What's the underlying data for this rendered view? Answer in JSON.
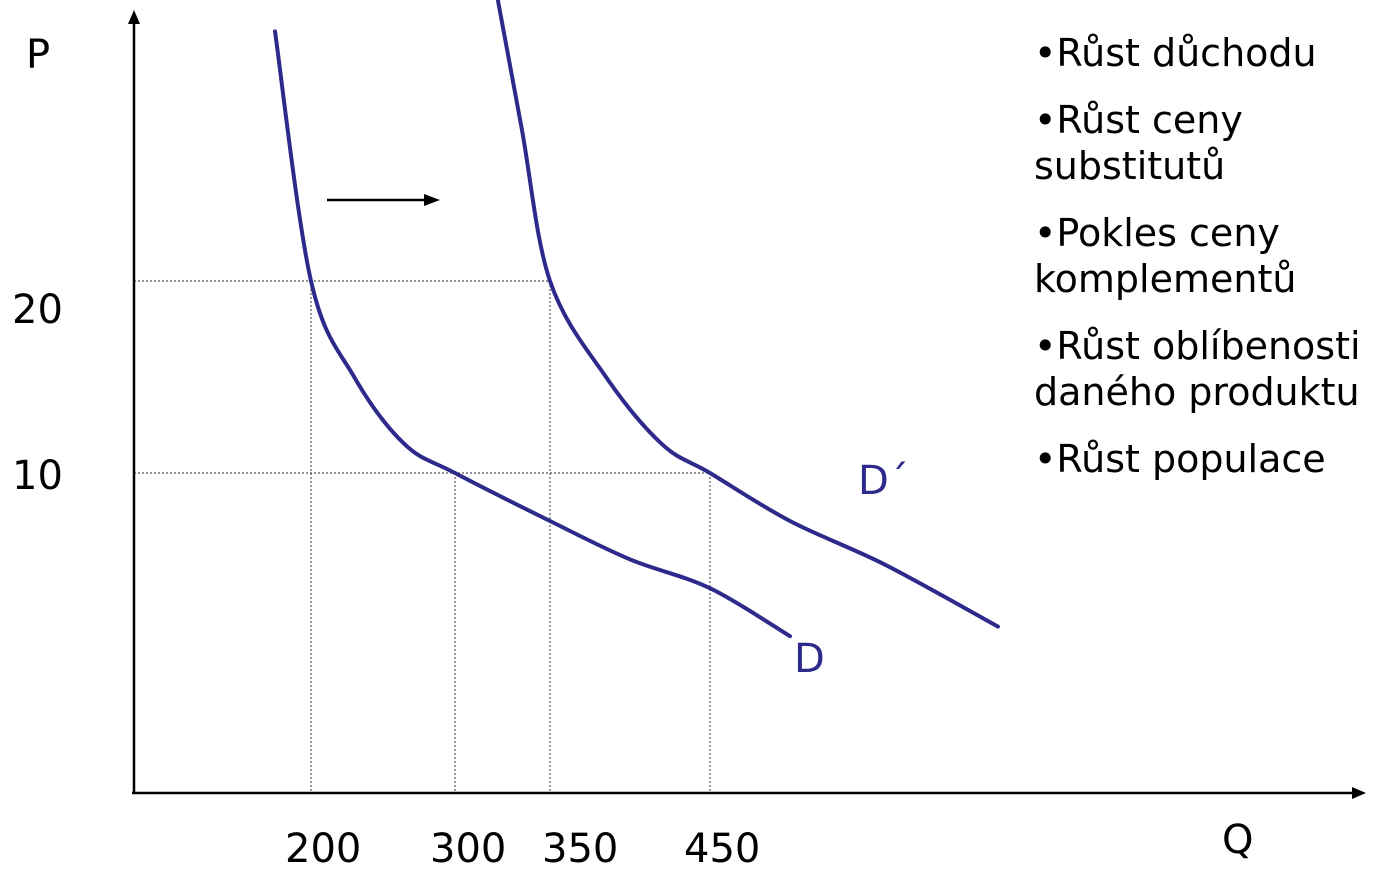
{
  "chart_data": {
    "type": "line",
    "xlabel": "Q",
    "ylabel": "P",
    "yticks": [
      "20",
      "10"
    ],
    "xticks": [
      "200",
      "300",
      "350",
      "450"
    ],
    "series": [
      {
        "name": "D",
        "points": [
          [
            175,
            33
          ],
          [
            200,
            20
          ],
          [
            230,
            15
          ],
          [
            265,
            11.5
          ],
          [
            300,
            10
          ],
          [
            350,
            7.5
          ],
          [
            400,
            5.5
          ],
          [
            450,
            4
          ],
          [
            500,
            1.5
          ]
        ]
      },
      {
        "name": "D´",
        "points": [
          [
            320,
            36
          ],
          [
            335,
            28
          ],
          [
            350,
            20
          ],
          [
            385,
            15
          ],
          [
            420,
            11.5
          ],
          [
            450,
            10
          ],
          [
            500,
            7.5
          ],
          [
            560,
            5.2
          ],
          [
            630,
            2
          ]
        ]
      }
    ],
    "guides": [
      {
        "y": 20,
        "x_start": 200,
        "x_end": 350
      },
      {
        "y": 10,
        "x_start": 300,
        "x_end": 450
      }
    ],
    "shift_arrow": "right",
    "colors": {
      "curve": "#2e2a8c",
      "axis": "#000000",
      "guide": "#555555"
    }
  },
  "notes": [
    {
      "lines": [
        "•Růst důchodu"
      ]
    },
    {
      "lines": [
        "•Růst ceny",
        "substitutů"
      ]
    },
    {
      "lines": [
        "•Pokles ceny",
        "komplementů"
      ]
    },
    {
      "lines": [
        "•Růst oblíbenosti",
        "daného produktu"
      ]
    },
    {
      "lines": [
        "•Růst populace"
      ]
    }
  ]
}
